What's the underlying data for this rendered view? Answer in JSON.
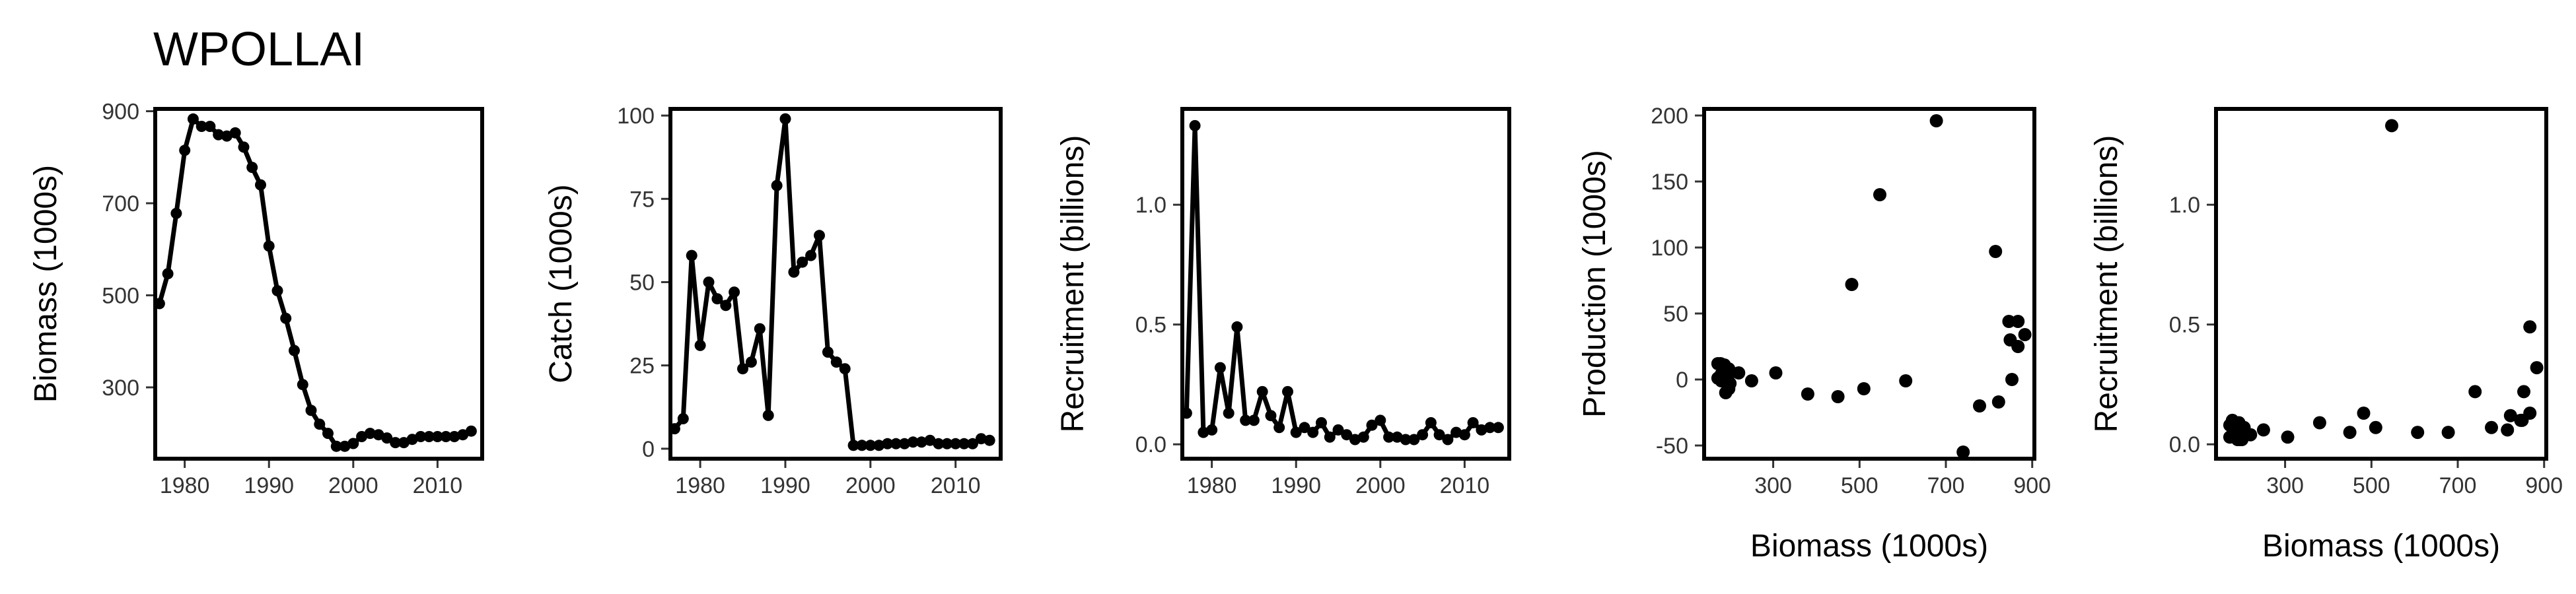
{
  "title": "WPOLLAI",
  "chart_data": [
    {
      "type": "line",
      "xlabel": "",
      "ylabel": "Biomass (1000s)",
      "xlim": [
        1976.5,
        2015.3
      ],
      "ylim": [
        145,
        905
      ],
      "xticks": [
        1980,
        1990,
        2000,
        2010
      ],
      "yticks": [
        300,
        500,
        700,
        900
      ],
      "x": [
        1977,
        1978,
        1979,
        1980,
        1981,
        1982,
        1983,
        1984,
        1985,
        1986,
        1987,
        1988,
        1989,
        1990,
        1991,
        1992,
        1993,
        1994,
        1995,
        1996,
        1997,
        1998,
        1999,
        2000,
        2001,
        2002,
        2003,
        2004,
        2005,
        2006,
        2007,
        2008,
        2009,
        2010,
        2011,
        2012,
        2013,
        2014
      ],
      "y": [
        482,
        547,
        678,
        815,
        883,
        867,
        867,
        849,
        846,
        853,
        822,
        778,
        740,
        607,
        510,
        450,
        380,
        306,
        250,
        220,
        200,
        172,
        172,
        178,
        193,
        200,
        197,
        190,
        180,
        180,
        187,
        193,
        193,
        193,
        193,
        193,
        197,
        205
      ]
    },
    {
      "type": "line",
      "xlabel": "",
      "ylabel": "Catch (1000s)",
      "xlim": [
        1976.5,
        2015.3
      ],
      "ylim": [
        -3,
        102
      ],
      "xticks": [
        1980,
        1990,
        2000,
        2010
      ],
      "yticks": [
        0,
        25,
        50,
        75,
        100
      ],
      "x": [
        1977,
        1978,
        1979,
        1980,
        1981,
        1982,
        1983,
        1984,
        1985,
        1986,
        1987,
        1988,
        1989,
        1990,
        1991,
        1992,
        1993,
        1994,
        1995,
        1996,
        1997,
        1998,
        1999,
        2000,
        2001,
        2002,
        2003,
        2004,
        2005,
        2006,
        2007,
        2008,
        2009,
        2010,
        2011,
        2012,
        2013,
        2014
      ],
      "y": [
        6,
        9,
        58,
        31,
        50,
        45,
        43,
        47,
        24,
        26,
        36,
        10,
        79,
        99,
        53,
        56,
        58,
        64,
        29,
        26,
        24,
        1,
        1,
        1,
        1,
        1.5,
        1.5,
        1.5,
        2,
        2,
        2.5,
        1.5,
        1.5,
        1.5,
        1.5,
        1.5,
        3,
        2.5
      ]
    },
    {
      "type": "line",
      "xlabel": "",
      "ylabel": "Recruitment (billions)",
      "xlim": [
        1976.5,
        2015.3
      ],
      "ylim": [
        -0.06,
        1.4
      ],
      "xticks": [
        1980,
        1990,
        2000,
        2010
      ],
      "yticks": [
        0.0,
        0.5,
        1.0
      ],
      "yticklabels": [
        "0.0",
        "0.5",
        "1.0"
      ],
      "x": [
        1977,
        1978,
        1979,
        1980,
        1981,
        1982,
        1983,
        1984,
        1985,
        1986,
        1987,
        1988,
        1989,
        1990,
        1991,
        1992,
        1993,
        1994,
        1995,
        1996,
        1997,
        1998,
        1999,
        2000,
        2001,
        2002,
        2003,
        2004,
        2005,
        2006,
        2007,
        2008,
        2009,
        2010,
        2011,
        2012,
        2013,
        2014
      ],
      "y": [
        0.13,
        1.33,
        0.05,
        0.06,
        0.32,
        0.13,
        0.49,
        0.1,
        0.1,
        0.22,
        0.12,
        0.07,
        0.22,
        0.05,
        0.07,
        0.05,
        0.09,
        0.03,
        0.06,
        0.04,
        0.02,
        0.03,
        0.08,
        0.1,
        0.03,
        0.03,
        0.02,
        0.02,
        0.04,
        0.09,
        0.04,
        0.02,
        0.05,
        0.04,
        0.09,
        0.06,
        0.07,
        0.07
      ]
    },
    {
      "type": "scatter",
      "xlabel": "Biomass (1000s)",
      "ylabel": "Production (1000s)",
      "xlim": [
        140,
        905
      ],
      "ylim": [
        -60,
        205
      ],
      "xticks": [
        300,
        500,
        700,
        900
      ],
      "yticks": [
        -50,
        0,
        50,
        100,
        150,
        200
      ],
      "x": [
        482,
        547,
        678,
        815,
        883,
        867,
        867,
        849,
        846,
        853,
        822,
        778,
        740,
        607,
        510,
        450,
        380,
        306,
        250,
        220,
        200,
        172,
        172,
        178,
        193,
        200,
        197,
        190,
        180,
        180,
        187,
        193,
        193,
        193,
        193,
        193,
        197
      ],
      "y": [
        72,
        140,
        196,
        97,
        34,
        25,
        44,
        30,
        44,
        0,
        -17,
        -20,
        -55,
        -1,
        -7,
        -13,
        -11,
        5,
        -1,
        5,
        5,
        1,
        12,
        12,
        6,
        -3,
        -7,
        -10,
        -1,
        4,
        11,
        1,
        1,
        1,
        1,
        1,
        8
      ]
    },
    {
      "type": "scatter",
      "xlabel": "Biomass (1000s)",
      "ylabel": "Recruitment (billions)",
      "xlim": [
        140,
        905
      ],
      "ylim": [
        -0.06,
        1.4
      ],
      "xticks": [
        300,
        500,
        700,
        900
      ],
      "yticks": [
        0.0,
        0.5,
        1.0
      ],
      "yticklabels": [
        "0.0",
        "0.5",
        "1.0"
      ],
      "x": [
        482,
        547,
        678,
        815,
        883,
        867,
        867,
        849,
        846,
        853,
        822,
        778,
        740,
        607,
        510,
        450,
        380,
        306,
        250,
        220,
        200,
        172,
        172,
        178,
        193,
        200,
        197,
        190,
        180,
        180,
        187,
        193,
        193,
        193,
        193,
        193,
        197,
        205
      ],
      "y": [
        0.13,
        1.33,
        0.05,
        0.06,
        0.32,
        0.13,
        0.49,
        0.1,
        0.1,
        0.22,
        0.12,
        0.07,
        0.22,
        0.05,
        0.07,
        0.05,
        0.09,
        0.03,
        0.06,
        0.04,
        0.02,
        0.03,
        0.08,
        0.1,
        0.03,
        0.03,
        0.02,
        0.02,
        0.04,
        0.09,
        0.04,
        0.02,
        0.05,
        0.04,
        0.09,
        0.06,
        0.07,
        0.07
      ]
    }
  ]
}
